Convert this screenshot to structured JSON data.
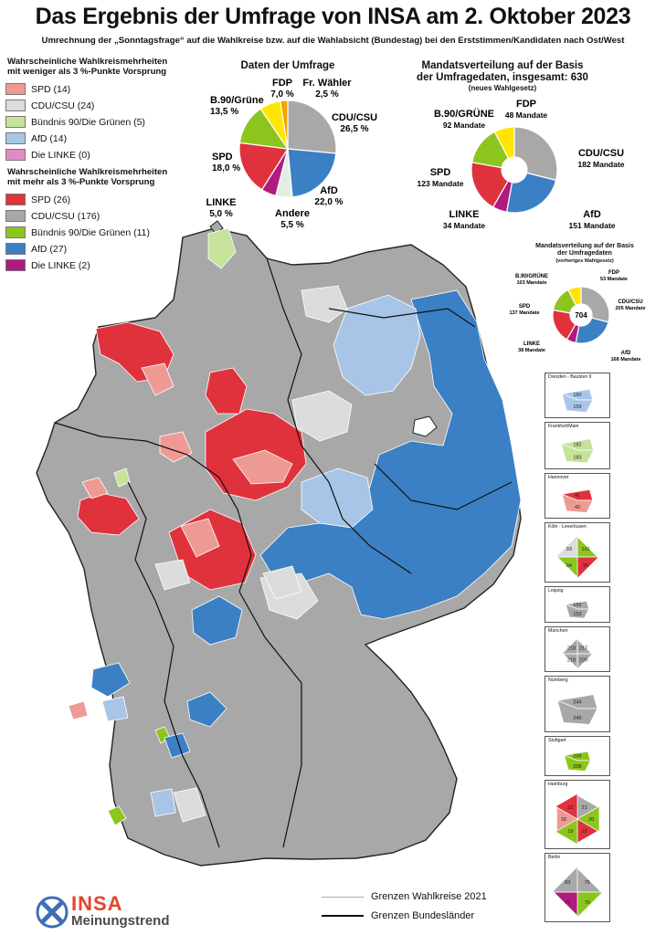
{
  "title": "Das Ergebnis der Umfrage von INSA am 2. Oktober 2023",
  "subtitle": "Umrechnung der „Sonntagsfrage“ auf die Wahlkreise bzw. auf die Wahlabsicht (Bundestag) bei den Erststimmen/Kandidaten nach Ost/West",
  "colors": {
    "spd_strong": "#e0323c",
    "spd_weak": "#ee9a94",
    "cdu_strong": "#a9a8a9",
    "cdu_weak": "#dcdcdc",
    "gruene_strong": "#8cc51e",
    "gruene_weak": "#c6e39a",
    "afd_strong": "#3b80c4",
    "afd_weak": "#a8c5e8",
    "linke_strong": "#b01b7e",
    "linke_weak": "#dd8dc4",
    "fdp": "#ffe500",
    "fw": "#f5a300",
    "andere": "#e3eee3"
  },
  "legend": {
    "weak_heading_1": "Wahrscheinliche Wahlkreismehrheiten",
    "weak_heading_2": "mit weniger als 3 %-Punkte Vorsprung",
    "weak_items": [
      {
        "label": "SPD (14)",
        "color": "#ee9a94"
      },
      {
        "label": "CDU/CSU (24)",
        "color": "#dcdcdc"
      },
      {
        "label": "Bündnis 90/Die Grünen (5)",
        "color": "#c6e39a"
      },
      {
        "label": "AfD (14)",
        "color": "#a8c5e8"
      },
      {
        "label": "Die LINKE (0)",
        "color": "#dd8dc4"
      }
    ],
    "strong_heading_1": "Wahrscheinliche Wahlkreismehrheiten",
    "strong_heading_2": "mit mehr als 3 %-Punkte Vorsprung",
    "strong_items": [
      {
        "label": "SPD (26)",
        "color": "#e0323c"
      },
      {
        "label": "CDU/CSU (176)",
        "color": "#a9a8a9"
      },
      {
        "label": "Bündnis 90/Die Grünen (11)",
        "color": "#8cc51e"
      },
      {
        "label": "AfD (27)",
        "color": "#3b80c4"
      },
      {
        "label": "Die LINKE (2)",
        "color": "#b01b7e"
      }
    ]
  },
  "chart_data": [
    {
      "type": "pie",
      "title": "Daten der Umfrage",
      "slices": [
        {
          "party": "CDU/CSU",
          "value": 26.5,
          "label": "26,5 %",
          "color": "#a9a8a9"
        },
        {
          "party": "AfD",
          "value": 22.0,
          "label": "22,0 %",
          "color": "#3b80c4"
        },
        {
          "party": "Andere",
          "value": 5.5,
          "label": "5,5 %",
          "color": "#e3eee3"
        },
        {
          "party": "LINKE",
          "value": 5.0,
          "label": "5,0 %",
          "color": "#b01b7e"
        },
        {
          "party": "SPD",
          "value": 18.0,
          "label": "18,0 %",
          "color": "#e0323c"
        },
        {
          "party": "B.90/Grüne",
          "value": 13.5,
          "label": "13,5 %",
          "color": "#8cc51e"
        },
        {
          "party": "FDP",
          "value": 7.0,
          "label": "7,0 %",
          "color": "#ffe500"
        },
        {
          "party": "Fr. Wähler",
          "value": 2.5,
          "label": "2,5 %",
          "color": "#f5a300"
        }
      ]
    },
    {
      "type": "pie",
      "title_1": "Mandatsverteilung auf der Basis",
      "title_2": "der Umfragedaten, insgesamt: 630",
      "title_3": "(neues Wahlgesetz)",
      "slices": [
        {
          "party": "CDU/CSU",
          "value": 182,
          "label": "182 Mandate",
          "color": "#a9a8a9"
        },
        {
          "party": "AfD",
          "value": 151,
          "label": "151 Mandate",
          "color": "#3b80c4"
        },
        {
          "party": "LINKE",
          "value": 34,
          "label": "34 Mandate",
          "color": "#b01b7e"
        },
        {
          "party": "SPD",
          "value": 123,
          "label": "123 Mandate",
          "color": "#e0323c"
        },
        {
          "party": "B.90/GRÜNE",
          "value": 92,
          "label": "92 Mandate",
          "color": "#8cc51e"
        },
        {
          "party": "FDP",
          "value": 48,
          "label": "48 Mandate",
          "color": "#ffe500"
        }
      ]
    },
    {
      "type": "pie",
      "title_1": "Mandatsverteilung auf der Basis",
      "title_2": "der Umfragedaten",
      "title_3": "(vorheriges Wahlgesetz)",
      "center": "704",
      "slices": [
        {
          "party": "CDU/CSU",
          "value": 205,
          "label": "205 Mandate",
          "color": "#a9a8a9"
        },
        {
          "party": "AfD",
          "value": 168,
          "label": "168 Mandate",
          "color": "#3b80c4"
        },
        {
          "party": "LINKE",
          "value": 38,
          "label": "38 Mandate",
          "color": "#b01b7e"
        },
        {
          "party": "SPD",
          "value": 137,
          "label": "137 Mandate",
          "color": "#e0323c"
        },
        {
          "party": "B.90/GRÜNE",
          "value": 103,
          "label": "103 Mandate",
          "color": "#8cc51e"
        },
        {
          "party": "FDP",
          "value": 53,
          "label": "53 Mandate",
          "color": "#ffe500"
        }
      ]
    }
  ],
  "insets": [
    {
      "label": "Dresden - Bautzen II",
      "numbers": [
        "160",
        "159"
      ]
    },
    {
      "label": "Frankfurt/Main",
      "numbers": [
        "182",
        "183"
      ]
    },
    {
      "label": "Hannover",
      "numbers": [
        "41",
        "42"
      ]
    },
    {
      "label": "Köln - Leverkusen",
      "numbers": [
        "101",
        "95",
        "94",
        "93"
      ]
    },
    {
      "label": "Leipzig",
      "numbers": [
        "152",
        "153"
      ]
    },
    {
      "label": "München",
      "numbers": [
        "217",
        "220",
        "219",
        "218"
      ]
    },
    {
      "label": "Nürnberg",
      "numbers": [
        "244",
        "245"
      ]
    },
    {
      "label": "Stuttgart",
      "numbers": [
        "259",
        "258"
      ]
    },
    {
      "label": "Hamburg",
      "numbers": [
        "21",
        "20",
        "22",
        "19",
        "18",
        "23"
      ]
    },
    {
      "label": "Berlin",
      "numbers": [
        "75",
        "76",
        "77",
        "83"
      ]
    }
  ],
  "map_legend": {
    "line1": "Grenzen Wahlkreise 2021",
    "line2": "Grenzen Bundesländer"
  },
  "logo": {
    "brand": "INSA",
    "sub": "Meinungstrend"
  }
}
